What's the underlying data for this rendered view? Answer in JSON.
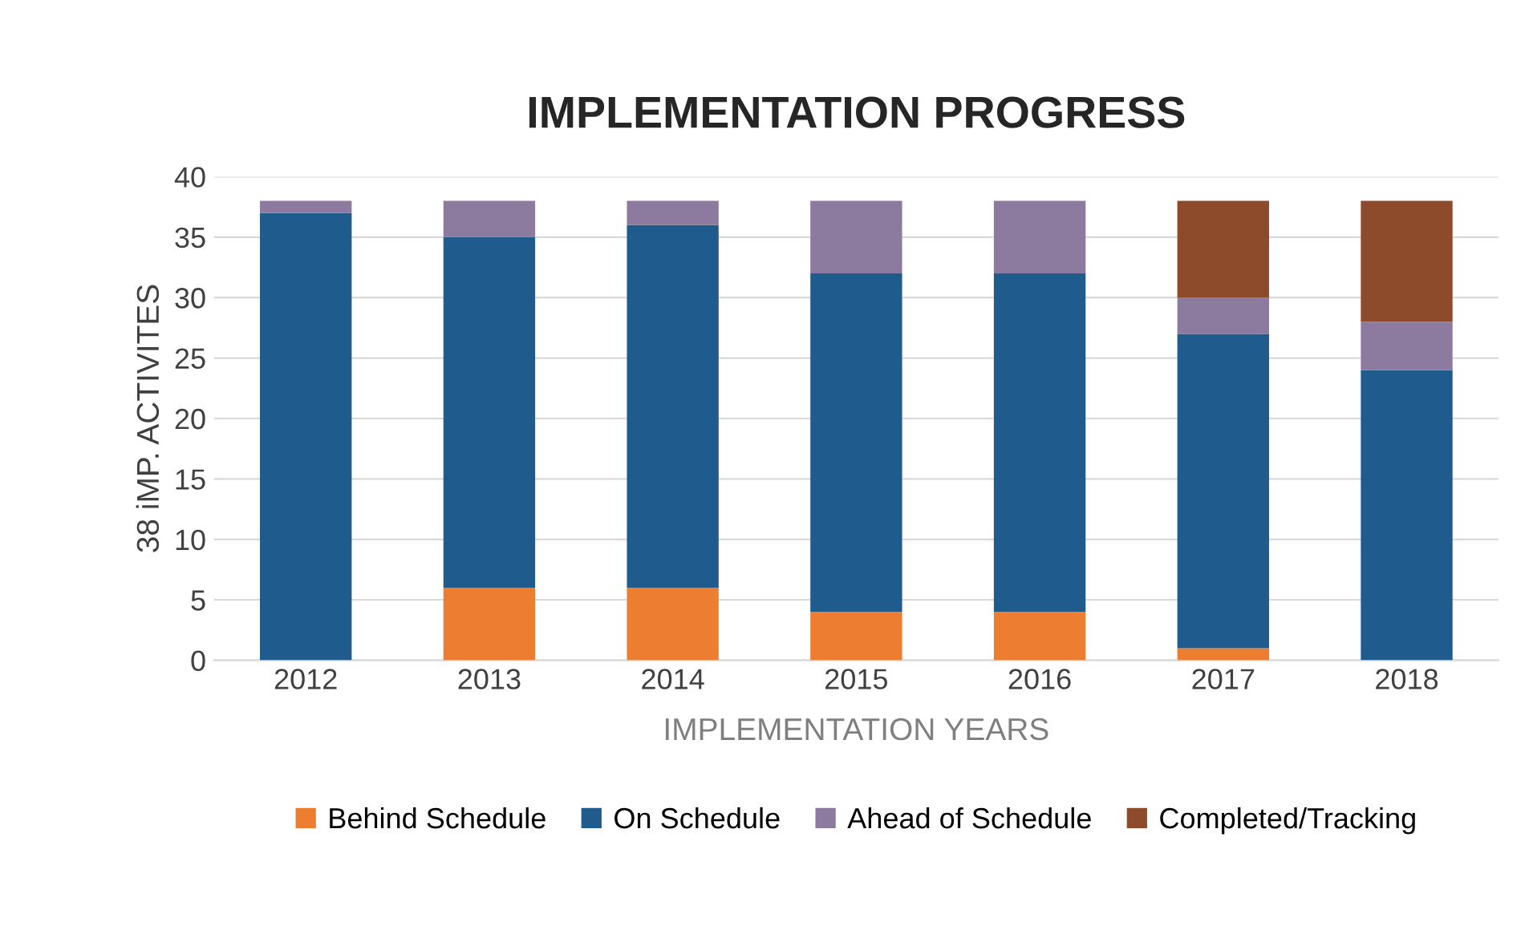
{
  "chart_data": {
    "type": "bar",
    "title": "IMPLEMENTATION PROGRESS",
    "xlabel": "IMPLEMENTATION YEARS",
    "ylabel": "38 iMP. ACTIVITES",
    "categories": [
      "2012",
      "2013",
      "2014",
      "2015",
      "2016",
      "2017",
      "2018"
    ],
    "stacked": true,
    "series": [
      {
        "name": "Behind Schedule",
        "color": "#ed7d31",
        "values": [
          0,
          6,
          6,
          4,
          4,
          1,
          0
        ]
      },
      {
        "name": "On Schedule",
        "color": "#1f5b8c",
        "values": [
          37,
          29,
          30,
          28,
          28,
          26,
          24
        ]
      },
      {
        "name": "Ahead of Schedule",
        "color": "#8c7b9e",
        "values": [
          1,
          3,
          2,
          6,
          6,
          3,
          4
        ]
      },
      {
        "name": "Completed/Tracking",
        "color": "#8e4b2c",
        "values": [
          0,
          0,
          0,
          0,
          0,
          8,
          10
        ]
      }
    ],
    "ylim": [
      0,
      40
    ],
    "yticks": [
      0,
      5,
      10,
      15,
      20,
      25,
      30,
      35,
      40
    ],
    "grid": "y",
    "legend": "bottom"
  }
}
